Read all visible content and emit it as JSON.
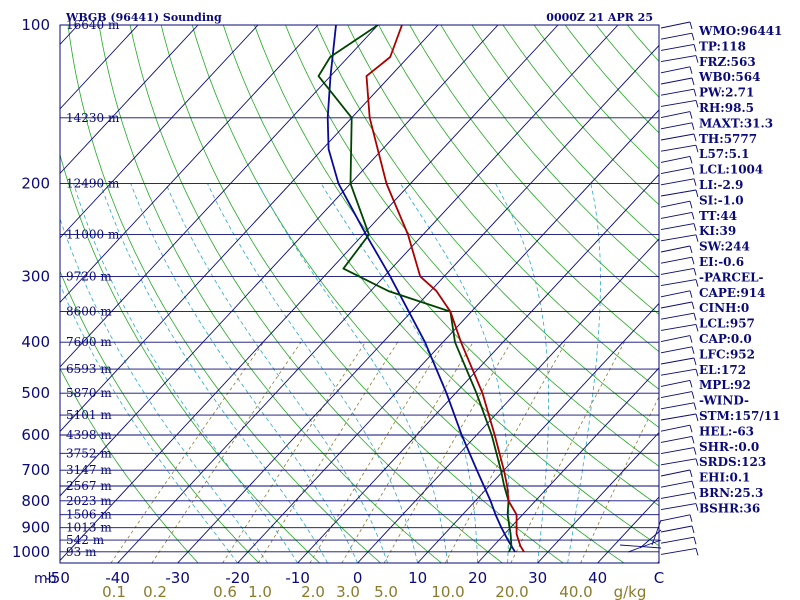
{
  "header": {
    "station": "WBGB (96441) Sounding",
    "time": "0000Z 21 APR 25"
  },
  "chart_data": {
    "type": "skew-t",
    "pressure_levels_mb": [
      100,
      200,
      300,
      400,
      500,
      600,
      700,
      800,
      900,
      1000
    ],
    "pressure_axis_unit": "mb",
    "height_labels": [
      {
        "p": 100,
        "label": "16640 m"
      },
      {
        "p": 150,
        "label": "14230 m"
      },
      {
        "p": 200,
        "label": "12490 m"
      },
      {
        "p": 250,
        "label": "11000 m"
      },
      {
        "p": 300,
        "label": "9720 m"
      },
      {
        "p": 350,
        "label": "8600 m"
      },
      {
        "p": 400,
        "label": "7600 m"
      },
      {
        "p": 450,
        "label": "6593 m"
      },
      {
        "p": 500,
        "label": "5870 m"
      },
      {
        "p": 550,
        "label": "5101 m"
      },
      {
        "p": 600,
        "label": "4398 m"
      },
      {
        "p": 650,
        "label": "3752 m"
      },
      {
        "p": 700,
        "label": "3147 m"
      },
      {
        "p": 750,
        "label": "2567 m"
      },
      {
        "p": 800,
        "label": "2023 m"
      },
      {
        "p": 850,
        "label": "1506 m"
      },
      {
        "p": 900,
        "label": "1013 m"
      },
      {
        "p": 950,
        "label": "542 m"
      },
      {
        "p": 1000,
        "label": "93 m"
      }
    ],
    "temperature_ticks_c": [
      -50,
      -40,
      -30,
      -20,
      -10,
      0,
      10,
      20,
      30,
      40
    ],
    "temperature_tick_labels": [
      "-50",
      "-40",
      "-30",
      "-20",
      "-10",
      "0",
      "10",
      "20",
      "30",
      "40"
    ],
    "temperature_axis_end_label": "C",
    "mixing_ratio_labels": [
      "0.1",
      "0.2",
      "0.6",
      "1.0",
      "2.0",
      "3.0",
      "5.0",
      "10.0",
      "20.0",
      "40.0"
    ],
    "mixing_ratio_values": [
      0.1,
      0.2,
      0.6,
      1.0,
      2.0,
      3.0,
      5.0,
      10.0,
      20.0,
      40.0
    ],
    "mixing_ratio_unit": "g/kg",
    "temperature_profile": [
      {
        "p": 1000,
        "t": 26.0
      },
      {
        "p": 975,
        "t": 24.5
      },
      {
        "p": 925,
        "t": 22.0
      },
      {
        "p": 850,
        "t": 19.0
      },
      {
        "p": 800,
        "t": 15.5
      },
      {
        "p": 750,
        "t": 13.0
      },
      {
        "p": 700,
        "t": 10.0
      },
      {
        "p": 600,
        "t": 3.0
      },
      {
        "p": 500,
        "t": -5.5
      },
      {
        "p": 400,
        "t": -17.0
      },
      {
        "p": 350,
        "t": -23.5
      },
      {
        "p": 320,
        "t": -29.0
      },
      {
        "p": 300,
        "t": -34.0
      },
      {
        "p": 250,
        "t": -42.5
      },
      {
        "p": 200,
        "t": -54.0
      },
      {
        "p": 150,
        "t": -67.0
      },
      {
        "p": 125,
        "t": -74.0
      },
      {
        "p": 115,
        "t": -73.0
      },
      {
        "p": 100,
        "t": -76.0
      }
    ],
    "dewpoint_profile": [
      {
        "p": 1000,
        "t": 23.5
      },
      {
        "p": 975,
        "t": 23.0
      },
      {
        "p": 925,
        "t": 21.0
      },
      {
        "p": 850,
        "t": 17.5
      },
      {
        "p": 800,
        "t": 15.5
      },
      {
        "p": 750,
        "t": 12.5
      },
      {
        "p": 700,
        "t": 9.5
      },
      {
        "p": 600,
        "t": 2.5
      },
      {
        "p": 500,
        "t": -6.5
      },
      {
        "p": 400,
        "t": -18.0
      },
      {
        "p": 350,
        "t": -23.5
      },
      {
        "p": 320,
        "t": -37.0
      },
      {
        "p": 290,
        "t": -48.0
      },
      {
        "p": 250,
        "t": -49.0
      },
      {
        "p": 200,
        "t": -60.0
      },
      {
        "p": 150,
        "t": -70.0
      },
      {
        "p": 125,
        "t": -82.0
      },
      {
        "p": 115,
        "t": -83.0
      },
      {
        "p": 100,
        "t": -80.0
      }
    ],
    "parcel_profile": [
      {
        "p": 1000,
        "t": 24.5
      },
      {
        "p": 950,
        "t": 21.5
      },
      {
        "p": 900,
        "t": 18.5
      },
      {
        "p": 850,
        "t": 15.5
      },
      {
        "p": 800,
        "t": 12.5
      },
      {
        "p": 700,
        "t": 5.5
      },
      {
        "p": 600,
        "t": -2.5
      },
      {
        "p": 500,
        "t": -11.5
      },
      {
        "p": 400,
        "t": -23.0
      },
      {
        "p": 300,
        "t": -39.0
      },
      {
        "p": 250,
        "t": -49.5
      },
      {
        "p": 200,
        "t": -62.0
      },
      {
        "p": 172,
        "t": -69.0
      },
      {
        "p": 150,
        "t": -74.0
      },
      {
        "p": 125,
        "t": -80.0
      },
      {
        "p": 100,
        "t": -87.0
      }
    ],
    "colors": {
      "frame": "#0a0a78",
      "isobar": "#0a0a78",
      "isotherm": "#0a0a78",
      "dry_adiabat": "#22aa22",
      "moist_adiabat": "#2aa8c8",
      "mixing_ratio": "#8a7a2a",
      "temperature": "#aa0000",
      "dewpoint": "#004400",
      "parcel": "#0a0a9a",
      "text": "#0a0a78",
      "mixing_ratio_text": "#8a7a2a"
    }
  },
  "indices": [
    "WMO:96441",
    "TP:118",
    "FRZ:563",
    "WB0:564",
    "PW:2.71",
    "RH:98.5",
    "MAXT:31.3",
    "TH:5777",
    "L57:5.1",
    "LCL:1004",
    "LI:-2.9",
    "SI:-1.0",
    "TT:44",
    "KI:39",
    "SW:244",
    "EI:-0.6",
    "-PARCEL-",
    "CAPE:914",
    "CINH:0",
    "LCL:957",
    "CAP:0.0",
    "LFC:952",
    "EL:172",
    "MPL:92",
    "-WIND-",
    "STM:157/11",
    "HEL:-63",
    "SHR-:0.0",
    "SRDS:123",
    "EHI:0.1",
    "BRN:25.3",
    "BSHR:36"
  ]
}
